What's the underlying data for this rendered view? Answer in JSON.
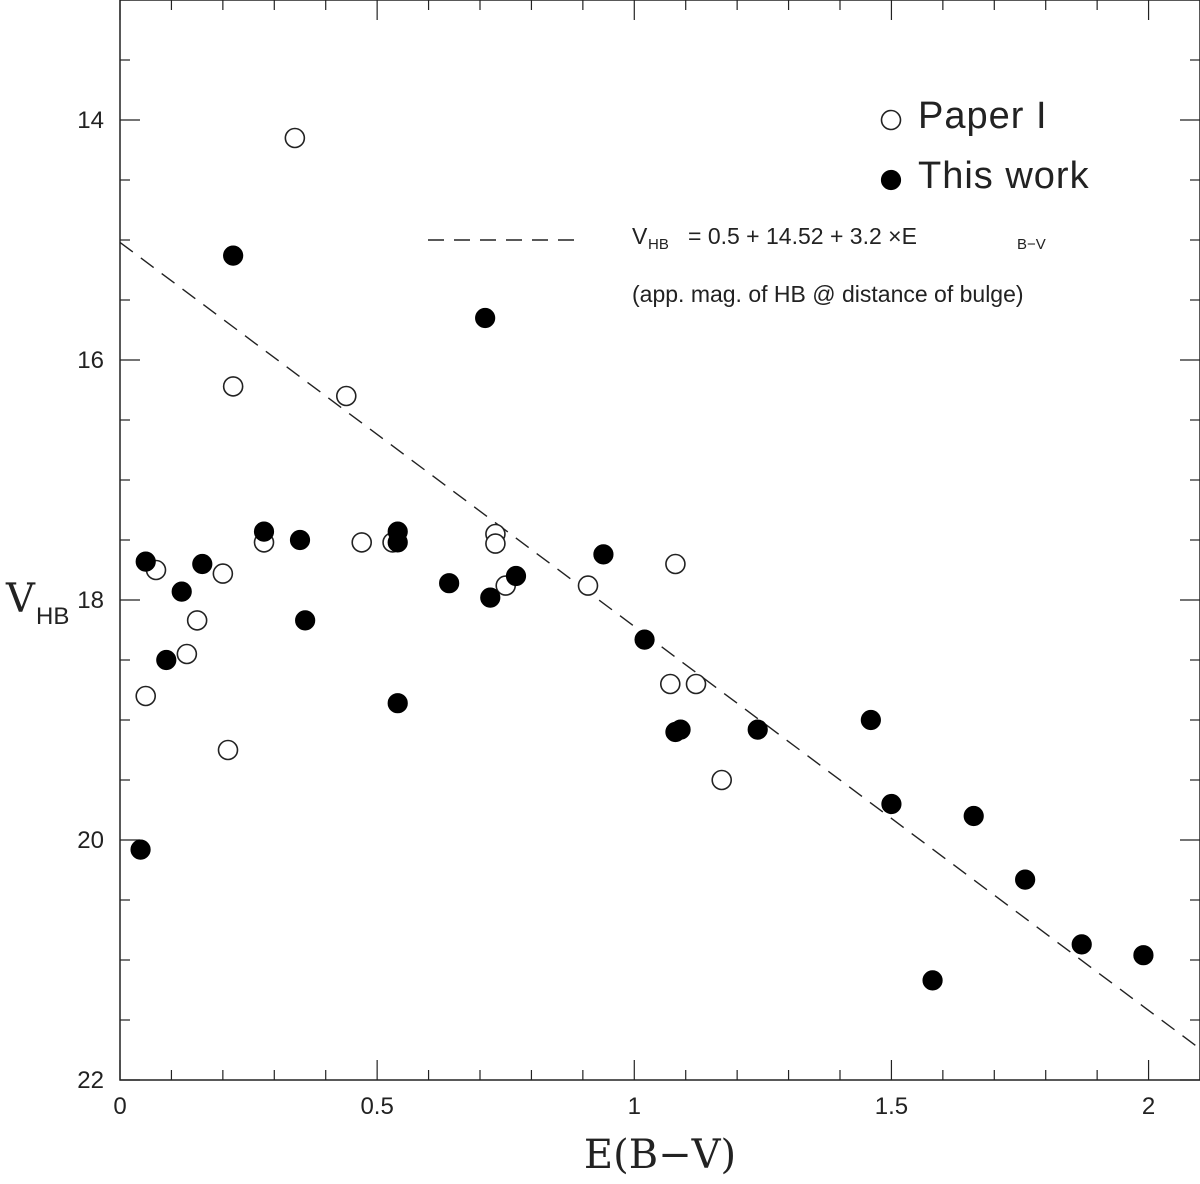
{
  "chart_data": {
    "type": "scatter",
    "xlabel": "E(B−V)",
    "ylabel": "V",
    "ylabel_sub": "HB",
    "xlim": [
      0,
      2.1
    ],
    "ylim": [
      13,
      22
    ],
    "y_inverted": true,
    "x_ticks": [
      "0",
      "0.5",
      "1",
      "1.5",
      "2"
    ],
    "y_ticks": [
      "14",
      "16",
      "18",
      "20",
      "22"
    ],
    "legend_position": "top-right",
    "series": [
      {
        "name": "Paper I",
        "marker": "open-circle",
        "points": [
          [
            0.34,
            14.15
          ],
          [
            0.22,
            16.22
          ],
          [
            0.44,
            16.3
          ],
          [
            0.05,
            18.8
          ],
          [
            0.07,
            17.75
          ],
          [
            0.13,
            18.45
          ],
          [
            0.15,
            18.17
          ],
          [
            0.2,
            17.78
          ],
          [
            0.21,
            19.25
          ],
          [
            0.28,
            17.52
          ],
          [
            0.47,
            17.52
          ],
          [
            0.53,
            17.52
          ],
          [
            0.73,
            17.45
          ],
          [
            0.73,
            17.53
          ],
          [
            0.75,
            17.88
          ],
          [
            0.91,
            17.88
          ],
          [
            1.07,
            18.7
          ],
          [
            1.08,
            17.7
          ],
          [
            1.12,
            18.7
          ],
          [
            1.17,
            19.5
          ]
        ]
      },
      {
        "name": "This work",
        "marker": "filled-circle",
        "points": [
          [
            0.22,
            15.13
          ],
          [
            0.71,
            15.65
          ],
          [
            0.05,
            17.68
          ],
          [
            0.16,
            17.7
          ],
          [
            0.12,
            17.93
          ],
          [
            0.09,
            18.5
          ],
          [
            0.04,
            20.08
          ],
          [
            0.28,
            17.43
          ],
          [
            0.35,
            17.5
          ],
          [
            0.36,
            18.17
          ],
          [
            0.54,
            17.43
          ],
          [
            0.54,
            17.52
          ],
          [
            0.54,
            18.86
          ],
          [
            0.64,
            17.86
          ],
          [
            0.72,
            17.98
          ],
          [
            0.77,
            17.8
          ],
          [
            0.94,
            17.62
          ],
          [
            1.02,
            18.33
          ],
          [
            1.08,
            19.1
          ],
          [
            1.09,
            19.08
          ],
          [
            1.24,
            19.08
          ],
          [
            1.46,
            19.0
          ],
          [
            1.5,
            19.7
          ],
          [
            1.58,
            21.17
          ],
          [
            1.66,
            19.8
          ],
          [
            1.76,
            20.33
          ],
          [
            1.87,
            20.87
          ],
          [
            1.99,
            20.96
          ]
        ]
      }
    ],
    "fit_line": {
      "style": "dashed",
      "intercept": 15.02,
      "slope": 3.2,
      "label_main": "V",
      "label_sub": "HB",
      "label_eq": "= 0.5 + 14.52 + 3.2 ×E",
      "label_eq_sub": "B−V",
      "note": "(app. mag. of HB @ distance of bulge)"
    },
    "legend": [
      {
        "label": "Paper I",
        "marker": "open-circle"
      },
      {
        "label": "This work",
        "marker": "filled-circle"
      }
    ]
  }
}
